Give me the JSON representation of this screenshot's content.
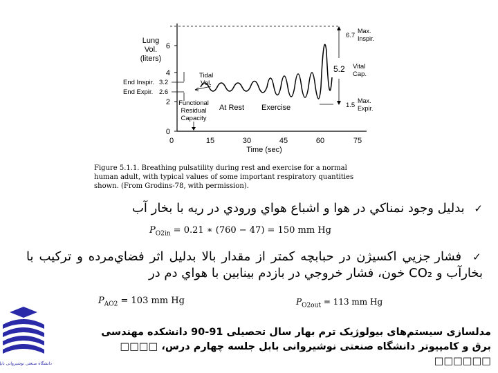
{
  "figure": {
    "y_axis_title": [
      "Lung",
      "Vol.",
      "(liters)"
    ],
    "y_ticks": [
      "0",
      "2",
      "4",
      "6"
    ],
    "x_ticks": [
      "0",
      "15",
      "30",
      "45",
      "60",
      "75"
    ],
    "x_label": "Time (sec)",
    "left_marks": [
      {
        "label": "End Inspir.",
        "value": "3.2"
      },
      {
        "label": "End Expir.",
        "value": "2.6"
      }
    ],
    "tidal_label": [
      "Tidal",
      "Vol."
    ],
    "frc_label": [
      "Functional",
      "Residual",
      "Capacity"
    ],
    "at_rest": "At Rest",
    "exercise": "Exercise",
    "right_marks": [
      {
        "value": "6.7",
        "label": [
          "Max.",
          "Inspir."
        ]
      },
      {
        "value": "1.5",
        "label": [
          "Max.",
          "Expir."
        ]
      }
    ],
    "vital_value": "5.2",
    "vital_label": [
      "Vital",
      "Cap."
    ],
    "caption_lines": [
      "Figure 5.1.1.  Breathing pulsatility during rest and exercise for a normal",
      "human adult, with typical values of some important respiratory quantities",
      "shown. (From Grodins-78, with permission)."
    ]
  },
  "bullets": [
    {
      "text": "بدليل وجود نمناكي در هوا و اشباع هواي ورودي در ريه با بخار آب"
    },
    {
      "text": "فشار جزيي اكسيژن در حبابچه كمتر از مقدار بالا بدليل اثر فضاي‌مرده و تركيب با بخارآب و CO₂ خون، فشار خروجي در بازدم بينابين با هواي دم در"
    }
  ],
  "equations": {
    "eq1_sym": "P",
    "eq1_sub": "O2in",
    "eq1_rest": "= 0.21 ∗ (760 − 47) = 150 mm Hg",
    "eq2_sym": "P",
    "eq2_sub": "O2out",
    "eq2_rest": "= 113 mm Hg",
    "eq3_sym": "P",
    "eq3_sub": "AO2",
    "eq3_rest": "= 103 mm Hg"
  },
  "footer": {
    "line1": "مدلسازی سیستم‌های بیولوژیک ترم بهار سال تحصیلی 91-90 دانشکده مهندسی",
    "line2": "برق و کامپیوتر دانشگاه صنعتی نوشیروانی بابل جلسه چهارم درس، □□□□ □□□□□□"
  },
  "logo_text": [
    "دانشگاه صنعتی نوشیروانی بابل"
  ]
}
